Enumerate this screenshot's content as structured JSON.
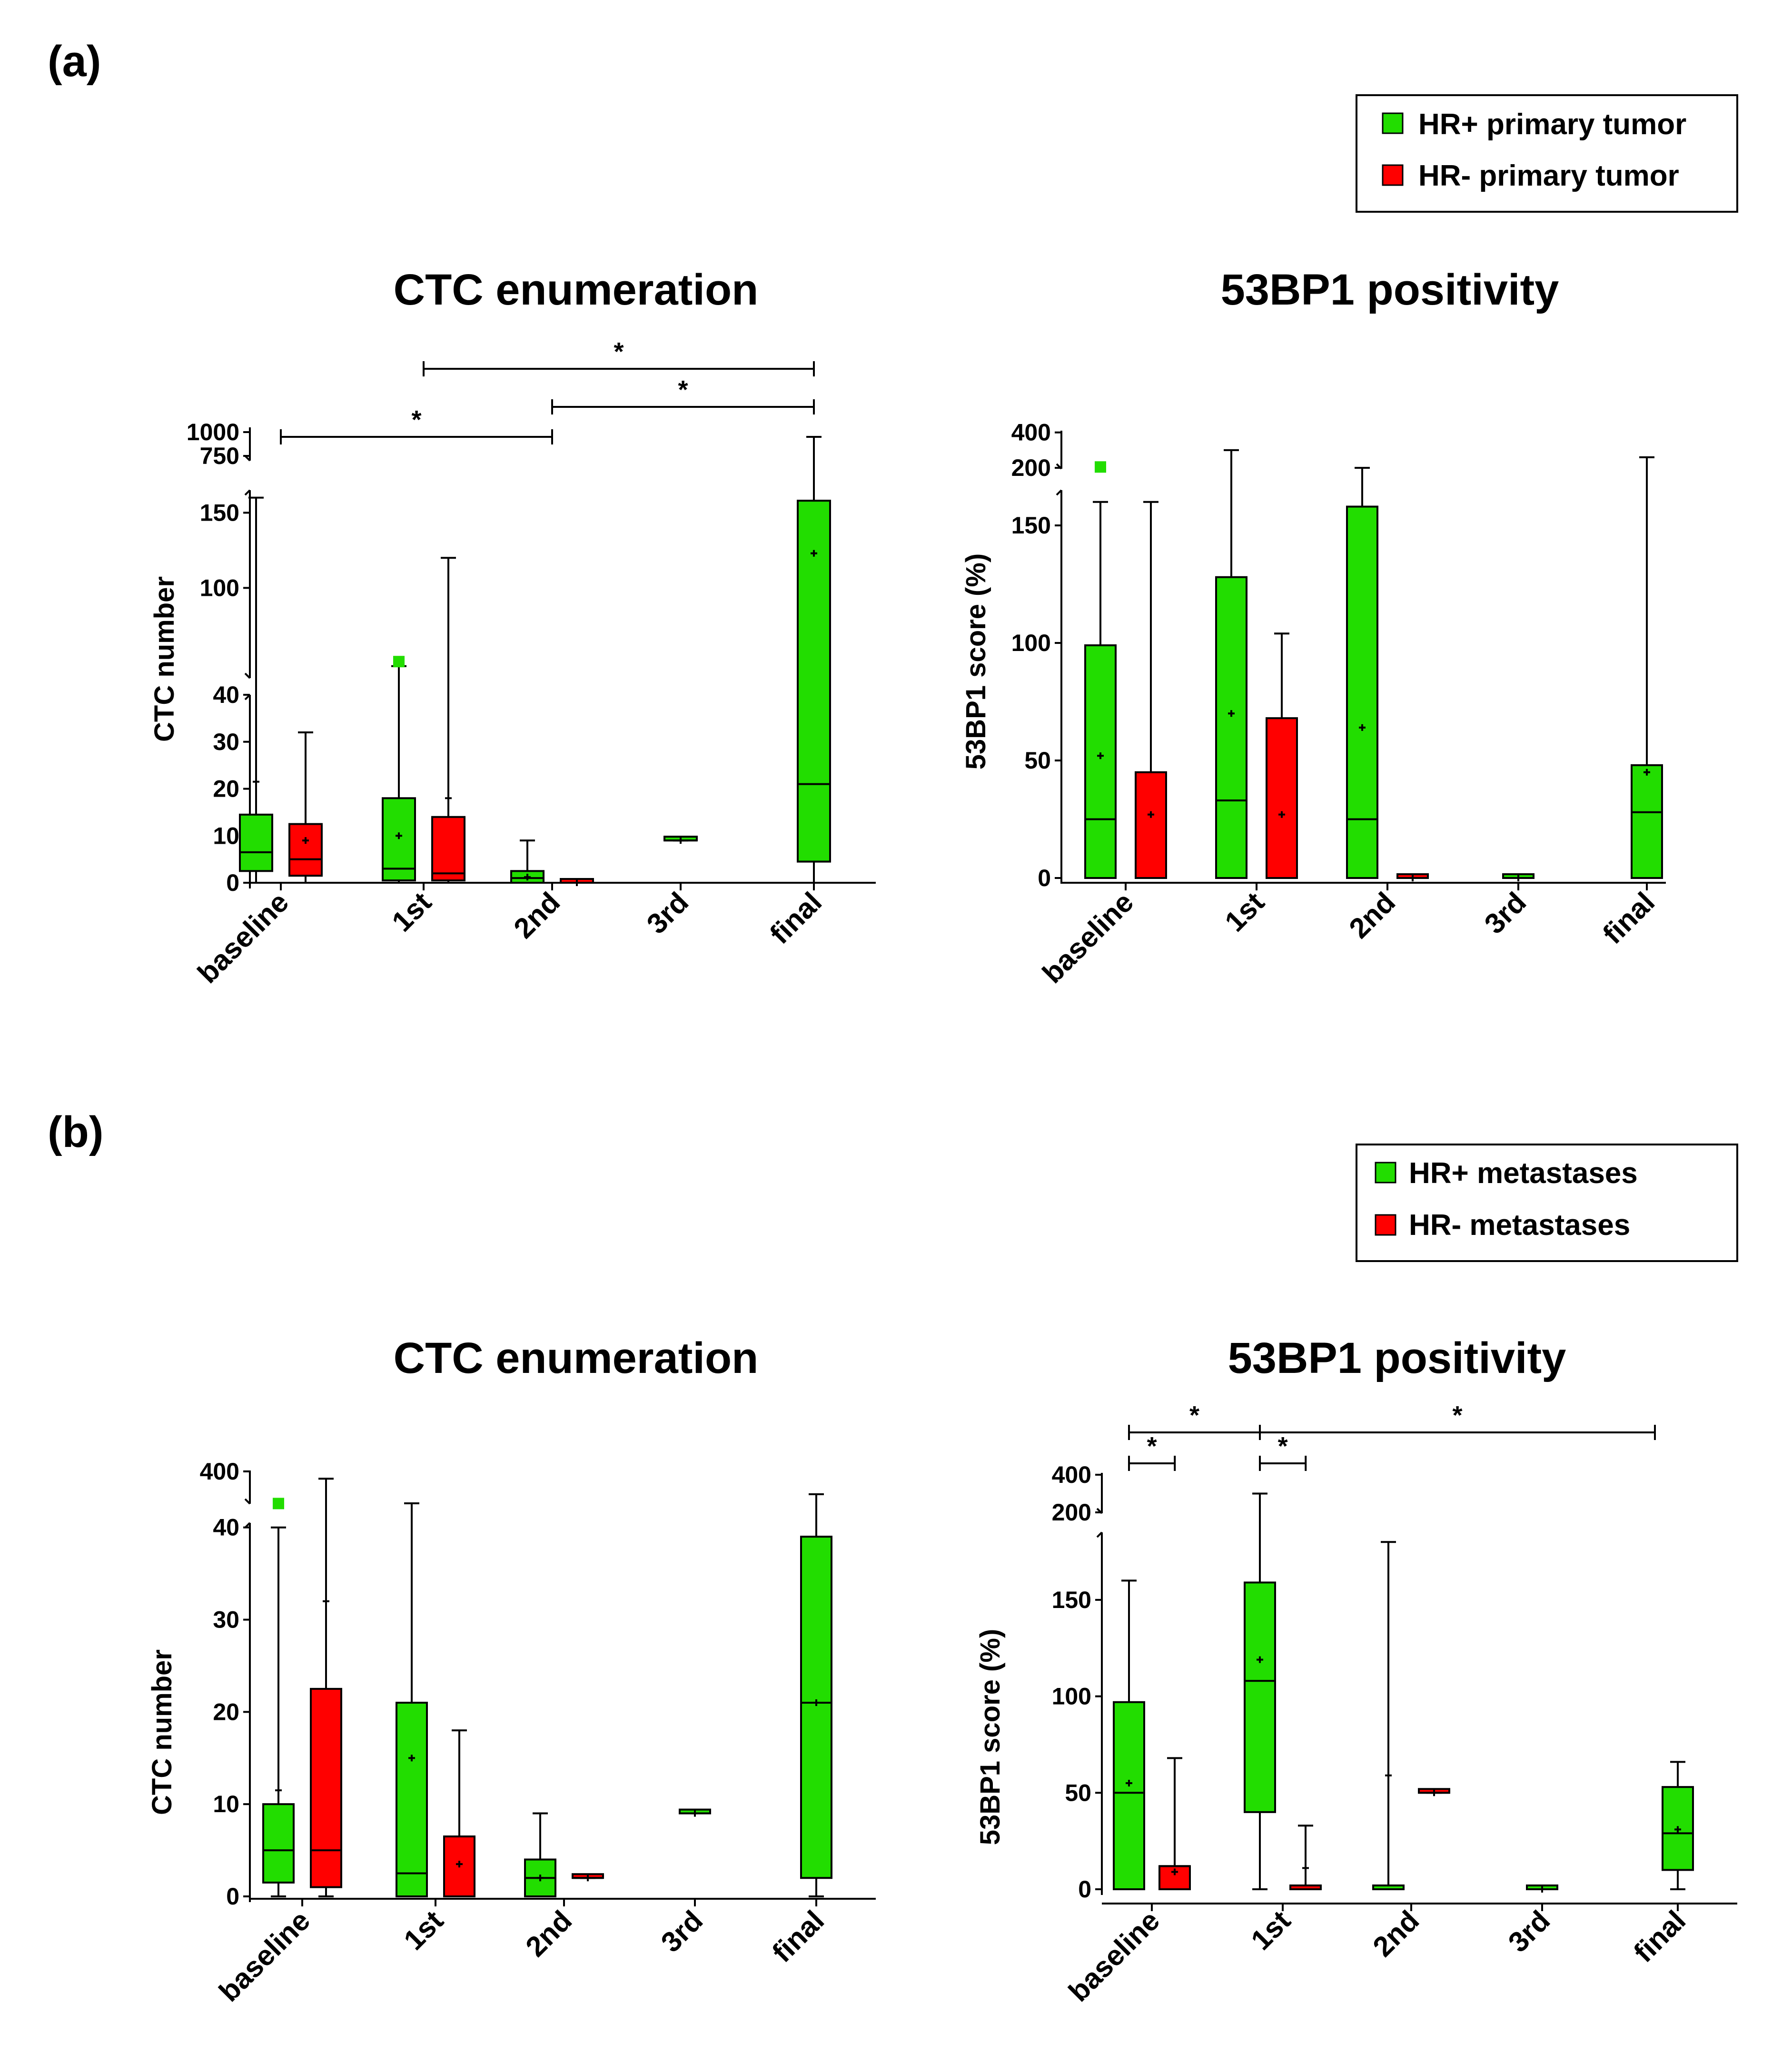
{
  "panels": {
    "a": {
      "label": "(a)",
      "legend": [
        "HR+ primary tumor",
        "HR- primary tumor"
      ]
    },
    "b": {
      "label": "(b)",
      "legend": [
        "HR+ metastases",
        "HR- metastases"
      ]
    }
  },
  "colors": {
    "hr_pos": "#22dd00",
    "hr_neg": "#ff0000",
    "axis": "#000000"
  },
  "chart_data": [
    {
      "id": "a-ctc",
      "type": "box",
      "title": "CTC enumeration",
      "ylabel": "CTC number",
      "categories": [
        "baseline",
        "1st",
        "2nd",
        "3rd",
        "final"
      ],
      "ticks": [
        "0",
        "10",
        "20",
        "30",
        "40",
        "100",
        "150",
        "750",
        "1000"
      ],
      "segments": [
        {
          "lo": 0,
          "hi": 40
        },
        {
          "lo": 40,
          "hi": 165
        },
        {
          "lo": 700,
          "hi": 1050
        }
      ],
      "series": [
        {
          "name": "HR+ primary tumor",
          "group": "pos",
          "boxes": [
            {
              "cat": 0,
              "min": 0,
              "q1": 2.5,
              "med": 6.5,
              "q3": 14.5,
              "max": 160,
              "mean": 21.5
            },
            {
              "cat": 1,
              "min": 0,
              "q1": 0.5,
              "med": 3,
              "q3": 18,
              "max": 48,
              "mean": 10,
              "outlier": 51
            },
            {
              "cat": 2,
              "min": 0,
              "q1": 0,
              "med": 1,
              "q3": 2.5,
              "max": 9,
              "mean": 1.2
            },
            {
              "cat": 3,
              "min": 9,
              "q1": 9,
              "med": 9,
              "q3": 9,
              "max": 9,
              "mean": 9
            },
            {
              "cat": 4,
              "min": 0,
              "q1": 4.5,
              "med": 21,
              "q3": 158,
              "max": 950,
              "mean": 123
            }
          ]
        },
        {
          "name": "HR- primary tumor",
          "group": "neg",
          "boxes": [
            {
              "cat": 0,
              "min": 0,
              "q1": 1.5,
              "med": 5,
              "q3": 12.5,
              "max": 32,
              "mean": 9
            },
            {
              "cat": 1,
              "min": 0,
              "q1": 0.5,
              "med": 2,
              "q3": 14,
              "max": 120,
              "mean": 18
            },
            {
              "cat": 2,
              "min": 0,
              "q1": 0,
              "med": 0,
              "q3": 0.5,
              "max": 0.5,
              "mean": 0
            }
          ]
        }
      ],
      "brackets": [
        {
          "from": 1,
          "to": 4,
          "label": "*"
        },
        {
          "from": 2,
          "to": 4,
          "label": "*"
        },
        {
          "from": 0,
          "to": 2,
          "label": "*"
        }
      ]
    },
    {
      "id": "a-53bp1",
      "type": "box",
      "title": "53BP1 positivity",
      "ylabel": "53BP1 score (%)",
      "categories": [
        "baseline",
        "1st",
        "2nd",
        "3rd",
        "final"
      ],
      "ticks": [
        "0",
        "50",
        "100",
        "150",
        "200",
        "400"
      ],
      "segments": [
        {
          "lo": 0,
          "hi": 165
        },
        {
          "lo": 195,
          "hi": 410
        }
      ],
      "series": [
        {
          "name": "HR+ primary tumor",
          "group": "pos",
          "boxes": [
            {
              "cat": 0,
              "min": 0,
              "q1": 0,
              "med": 25,
              "q3": 99,
              "max": 160,
              "mean": 52,
              "outlier": 205
            },
            {
              "cat": 1,
              "min": 0,
              "q1": 0,
              "med": 33,
              "q3": 128,
              "max": 300,
              "mean": 70
            },
            {
              "cat": 2,
              "min": 0,
              "q1": 0,
              "med": 25,
              "q3": 158,
              "max": 200,
              "mean": 64
            },
            {
              "cat": 3,
              "min": 0,
              "q1": 0,
              "med": 0,
              "q3": 0,
              "max": 0,
              "mean": 0
            },
            {
              "cat": 4,
              "min": 0,
              "q1": 0,
              "med": 28,
              "q3": 48,
              "max": 260,
              "mean": 45
            }
          ]
        },
        {
          "name": "HR- primary tumor",
          "group": "neg",
          "boxes": [
            {
              "cat": 0,
              "min": 0,
              "q1": 0,
              "med": 0,
              "q3": 45,
              "max": 160,
              "mean": 27
            },
            {
              "cat": 1,
              "min": 0,
              "q1": 0,
              "med": 0,
              "q3": 68,
              "max": 104,
              "mean": 27
            },
            {
              "cat": 2,
              "min": 0,
              "q1": 0,
              "med": 0,
              "q3": 0,
              "max": 0,
              "mean": 0
            }
          ]
        }
      ],
      "brackets": []
    },
    {
      "id": "b-ctc",
      "type": "box",
      "title": "CTC enumeration",
      "ylabel": "CTC number",
      "categories": [
        "baseline",
        "1st",
        "2nd",
        "3rd",
        "final"
      ],
      "ticks": [
        "0",
        "10",
        "20",
        "30",
        "40",
        "400"
      ],
      "segments": [
        {
          "lo": 0,
          "hi": 40.5
        },
        {
          "lo": 45,
          "hi": 410
        }
      ],
      "series": [
        {
          "name": "HR+ metastases",
          "group": "pos",
          "boxes": [
            {
              "cat": 0,
              "min": 0,
              "q1": 1.5,
              "med": 5,
              "q3": 10,
              "max": 40,
              "mean": 11.5,
              "outlier": 48
            },
            {
              "cat": 1,
              "min": 0,
              "q1": 0,
              "med": 2.5,
              "q3": 21,
              "max": 50,
              "mean": 15
            },
            {
              "cat": 2,
              "min": 0,
              "q1": 0,
              "med": 2,
              "q3": 4,
              "max": 9,
              "mean": 2
            },
            {
              "cat": 3,
              "min": 9,
              "q1": 9,
              "med": 9,
              "q3": 9,
              "max": 9,
              "mean": 9
            },
            {
              "cat": 4,
              "min": 0,
              "q1": 2,
              "med": 21,
              "q3": 39,
              "max": 150,
              "mean": 21
            }
          ]
        },
        {
          "name": "HR- metastases",
          "group": "neg",
          "boxes": [
            {
              "cat": 0,
              "min": 0,
              "q1": 1,
              "med": 5,
              "q3": 22.5,
              "max": 320,
              "mean": 32
            },
            {
              "cat": 1,
              "min": 0,
              "q1": 0,
              "med": 0,
              "q3": 6.5,
              "max": 18,
              "mean": 3.5
            },
            {
              "cat": 2,
              "min": 2,
              "q1": 2,
              "med": 2,
              "q3": 2,
              "max": 2,
              "mean": 2
            }
          ]
        }
      ],
      "brackets": []
    },
    {
      "id": "b-53bp1",
      "type": "box",
      "title": "53BP1 positivity",
      "ylabel": "53BP1 score (%)",
      "categories": [
        "baseline",
        "1st",
        "2nd",
        "3rd",
        "final"
      ],
      "ticks": [
        "0",
        "50",
        "100",
        "150",
        "200",
        "400"
      ],
      "segments": [
        {
          "lo": 0,
          "hi": 185
        },
        {
          "lo": 195,
          "hi": 410
        }
      ],
      "series": [
        {
          "name": "HR+ metastases",
          "group": "pos",
          "boxes": [
            {
              "cat": 0,
              "min": 0,
              "q1": 0,
              "med": 50,
              "q3": 97,
              "max": 160,
              "mean": 55
            },
            {
              "cat": 1,
              "min": 0,
              "q1": 40,
              "med": 108,
              "q3": 159,
              "max": 300,
              "mean": 119
            },
            {
              "cat": 2,
              "min": 0,
              "q1": 0,
              "med": 0,
              "q3": 0,
              "max": 180,
              "mean": 59
            },
            {
              "cat": 3,
              "min": 0,
              "q1": 0,
              "med": 0,
              "q3": 0,
              "max": 0,
              "mean": 0
            },
            {
              "cat": 4,
              "min": 0,
              "q1": 10,
              "med": 29,
              "q3": 53,
              "max": 66,
              "mean": 31
            }
          ]
        },
        {
          "name": "HR- metastases",
          "group": "neg",
          "boxes": [
            {
              "cat": 0,
              "min": 0,
              "q1": 0,
              "med": 12,
              "q3": 12,
              "max": 68,
              "mean": 9
            },
            {
              "cat": 1,
              "min": 0,
              "q1": 0,
              "med": 0,
              "q3": 0,
              "max": 33,
              "mean": 11
            },
            {
              "cat": 2,
              "min": 50,
              "q1": 50,
              "med": 50,
              "q3": 50,
              "max": 50,
              "mean": 50
            }
          ]
        }
      ],
      "brackets": [
        {
          "from": 0,
          "to": 1,
          "label": "*"
        },
        {
          "from": 1,
          "to": 4,
          "label": "*"
        },
        {
          "from": 0,
          "to": 0.35,
          "label": "*"
        },
        {
          "from": 1,
          "to": 1.35,
          "label": "*"
        }
      ]
    }
  ]
}
